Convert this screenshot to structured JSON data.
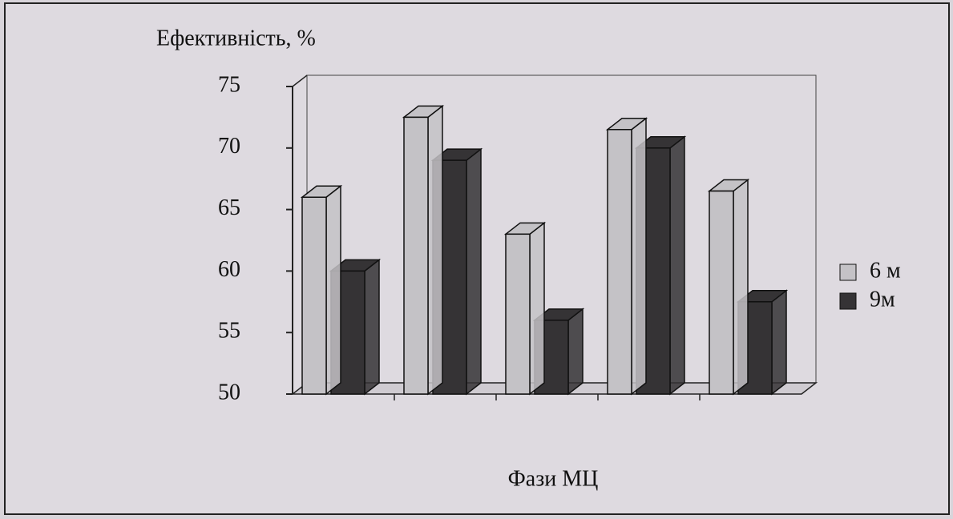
{
  "chart_data": {
    "type": "bar",
    "title": "Ефективність, %",
    "x_label": "Фази МЦ",
    "categories": [
      null,
      null,
      null,
      null,
      null
    ],
    "series": [
      {
        "name": "6 м",
        "color": "#c4c2c6",
        "values": [
          66,
          72.5,
          63,
          71.5,
          66.5
        ]
      },
      {
        "name": "9м",
        "color": "#353335",
        "values": [
          60,
          69,
          56,
          70,
          57.5
        ]
      }
    ],
    "ylim": [
      50,
      75
    ],
    "yticks": [
      50,
      55,
      60,
      65,
      70,
      75
    ],
    "legend": "right"
  }
}
